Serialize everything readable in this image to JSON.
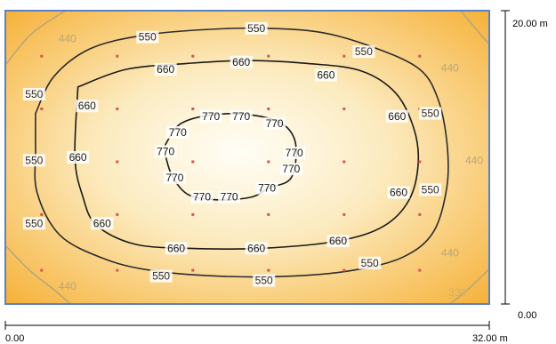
{
  "chart_data": {
    "type": "contour",
    "x_axis": {
      "min": 0,
      "max": 32,
      "unit": "m",
      "tick_labels": [
        "0.00",
        "32.00 m"
      ]
    },
    "y_axis": {
      "min": 0,
      "max": 20,
      "unit": "m",
      "tick_labels": [
        "0.00",
        "20.00 m"
      ]
    },
    "grid": false,
    "levels": [
      330,
      440,
      550,
      660,
      770
    ],
    "level_colors": {
      "330": "#c8b277",
      "440": "#b7a77a",
      "550": "#2c2c2c",
      "660": "#1a1a1a",
      "770": "#1a1a1a"
    },
    "field": {
      "low_color": "#f6b23a",
      "mid_color": "#fcebc0",
      "high_color": "#fffef7"
    },
    "frame_color": "#5a82c2",
    "measurement_points": {
      "color": "#d9534f",
      "x": [
        2.4,
        7.4,
        12.4,
        17.4,
        22.4,
        27.4
      ],
      "y": [
        2.3,
        6.1,
        9.7,
        13.3,
        16.9
      ]
    },
    "isolines": [
      {
        "level": 770,
        "label": "770",
        "points": [
          [
            10.6,
            10.9
          ],
          [
            11.6,
            12.3
          ],
          [
            13.7,
            12.9
          ],
          [
            16.2,
            12.9
          ],
          [
            18.3,
            12.3
          ],
          [
            19.2,
            10.9
          ],
          [
            18.9,
            8.6
          ],
          [
            17.4,
            7.9
          ],
          [
            16.3,
            7.3
          ],
          [
            14.2,
            7.1
          ],
          [
            12.2,
            7.4
          ],
          [
            11.1,
            8.6
          ],
          [
            10.6,
            10.1
          ],
          [
            10.6,
            10.9
          ]
        ]
      },
      {
        "level": 660,
        "label": "660",
        "points": [
          [
            4.8,
            14.8
          ],
          [
            8.0,
            16.0
          ],
          [
            12.0,
            16.4
          ],
          [
            16.0,
            16.6
          ],
          [
            20.0,
            16.4
          ],
          [
            23.5,
            15.9
          ],
          [
            25.8,
            14.4
          ],
          [
            27.0,
            12.0
          ],
          [
            27.3,
            9.6
          ],
          [
            26.7,
            7.1
          ],
          [
            25.0,
            5.3
          ],
          [
            22.0,
            4.3
          ],
          [
            17.0,
            3.8
          ],
          [
            12.0,
            3.8
          ],
          [
            8.5,
            4.1
          ],
          [
            6.0,
            5.4
          ],
          [
            5.1,
            7.4
          ],
          [
            4.6,
            10.0
          ],
          [
            4.8,
            14.8
          ]
        ]
      },
      {
        "level": 550,
        "label": "550",
        "points": [
          [
            2.0,
            13.0
          ],
          [
            3.2,
            15.5
          ],
          [
            5.6,
            17.4
          ],
          [
            9.0,
            18.3
          ],
          [
            13.0,
            18.7
          ],
          [
            17.0,
            18.8
          ],
          [
            21.0,
            18.5
          ],
          [
            24.6,
            17.4
          ],
          [
            27.4,
            16.0
          ],
          [
            28.6,
            14.0
          ],
          [
            29.2,
            11.0
          ],
          [
            29.2,
            8.0
          ],
          [
            28.3,
            4.9
          ],
          [
            26.3,
            3.2
          ],
          [
            23.0,
            2.3
          ],
          [
            19.0,
            1.9
          ],
          [
            14.0,
            1.9
          ],
          [
            9.6,
            2.3
          ],
          [
            6.5,
            3.1
          ],
          [
            3.6,
            4.7
          ],
          [
            2.1,
            7.6
          ],
          [
            2.0,
            10.5
          ],
          [
            2.0,
            13.0
          ]
        ]
      },
      {
        "level": 440,
        "label": "440",
        "points": [
          [
            0.0,
            16.3
          ],
          [
            1.6,
            18.3
          ],
          [
            3.2,
            19.5
          ],
          [
            4.0,
            20.0
          ]
        ]
      },
      {
        "level": 440,
        "label": "440",
        "points": [
          [
            0.0,
            4.0
          ],
          [
            1.6,
            2.3
          ],
          [
            3.3,
            0.9
          ],
          [
            4.3,
            0.0
          ]
        ]
      },
      {
        "level": 440,
        "label": "440",
        "points": [
          [
            30.1,
            20.0
          ],
          [
            31.0,
            18.9
          ],
          [
            32.0,
            17.7
          ]
        ]
      },
      {
        "level": 440,
        "label": "440",
        "points": [
          [
            29.4,
            0.0
          ],
          [
            30.6,
            1.0
          ],
          [
            32.0,
            2.4
          ]
        ]
      }
    ],
    "isoline_labels": [
      {
        "level": 770,
        "text": "770",
        "x": 11.4,
        "y": 11.7
      },
      {
        "level": 770,
        "text": "770",
        "x": 13.6,
        "y": 12.8
      },
      {
        "level": 770,
        "text": "770",
        "x": 15.6,
        "y": 12.8
      },
      {
        "level": 770,
        "text": "770",
        "x": 17.8,
        "y": 12.3
      },
      {
        "level": 770,
        "text": "770",
        "x": 19.1,
        "y": 10.3
      },
      {
        "level": 770,
        "text": "770",
        "x": 10.6,
        "y": 10.4
      },
      {
        "level": 770,
        "text": "770",
        "x": 18.9,
        "y": 9.2
      },
      {
        "level": 770,
        "text": "770",
        "x": 11.2,
        "y": 8.6
      },
      {
        "level": 770,
        "text": "770",
        "x": 17.3,
        "y": 7.9
      },
      {
        "level": 770,
        "text": "770",
        "x": 13.0,
        "y": 7.3
      },
      {
        "level": 770,
        "text": "770",
        "x": 14.8,
        "y": 7.3
      },
      {
        "level": 660,
        "text": "660",
        "x": 10.6,
        "y": 16.0
      },
      {
        "level": 660,
        "text": "660",
        "x": 15.6,
        "y": 16.5
      },
      {
        "level": 660,
        "text": "660",
        "x": 21.2,
        "y": 15.6
      },
      {
        "level": 660,
        "text": "660",
        "x": 5.4,
        "y": 13.5
      },
      {
        "level": 660,
        "text": "660",
        "x": 25.9,
        "y": 12.8
      },
      {
        "level": 660,
        "text": "660",
        "x": 4.8,
        "y": 10.0
      },
      {
        "level": 660,
        "text": "660",
        "x": 26.0,
        "y": 7.6
      },
      {
        "level": 660,
        "text": "660",
        "x": 6.4,
        "y": 5.5
      },
      {
        "level": 660,
        "text": "660",
        "x": 22.0,
        "y": 4.3
      },
      {
        "level": 660,
        "text": "660",
        "x": 11.3,
        "y": 3.8
      },
      {
        "level": 660,
        "text": "660",
        "x": 16.6,
        "y": 3.8
      },
      {
        "level": 550,
        "text": "550",
        "x": 9.4,
        "y": 18.2
      },
      {
        "level": 550,
        "text": "550",
        "x": 16.6,
        "y": 18.8
      },
      {
        "level": 550,
        "text": "550",
        "x": 23.7,
        "y": 17.2
      },
      {
        "level": 550,
        "text": "550",
        "x": 1.9,
        "y": 14.3
      },
      {
        "level": 550,
        "text": "550",
        "x": 28.1,
        "y": 13.0
      },
      {
        "level": 550,
        "text": "550",
        "x": 1.9,
        "y": 9.8
      },
      {
        "level": 550,
        "text": "550",
        "x": 28.1,
        "y": 7.8
      },
      {
        "level": 550,
        "text": "550",
        "x": 1.9,
        "y": 5.5
      },
      {
        "level": 550,
        "text": "550",
        "x": 24.1,
        "y": 2.8
      },
      {
        "level": 550,
        "text": "550",
        "x": 10.3,
        "y": 1.9
      },
      {
        "level": 550,
        "text": "550",
        "x": 17.1,
        "y": 1.6
      },
      {
        "level": 440,
        "text": "440",
        "x": 4.1,
        "y": 18.1
      },
      {
        "level": 440,
        "text": "440",
        "x": 29.4,
        "y": 16.1
      },
      {
        "level": 440,
        "text": "440",
        "x": 31.0,
        "y": 9.8
      },
      {
        "level": 440,
        "text": "440",
        "x": 29.4,
        "y": 3.5
      },
      {
        "level": 440,
        "text": "440",
        "x": 4.1,
        "y": 1.2
      },
      {
        "level": 330,
        "text": "330",
        "x": 29.9,
        "y": 0.8
      }
    ]
  }
}
